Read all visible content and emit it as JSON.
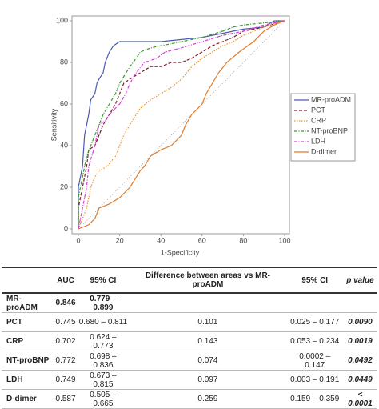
{
  "chart_data": {
    "type": "line",
    "xlabel": "1-Specificity",
    "ylabel": "Sensitivity",
    "xlim": [
      0,
      100
    ],
    "ylim": [
      0,
      100
    ],
    "xticks": [
      0,
      20,
      40,
      60,
      80,
      100
    ],
    "yticks": [
      0,
      20,
      40,
      60,
      80,
      100
    ],
    "reference_line": true,
    "legend": "right",
    "series": [
      {
        "name": "MR-proADM",
        "color": "#4a5bb5",
        "style": "solid",
        "x": [
          0,
          0,
          2,
          3,
          5,
          6,
          8,
          9,
          10,
          12,
          13,
          15,
          17,
          20,
          30,
          40,
          50,
          60,
          70,
          80,
          90,
          95,
          100
        ],
        "values": [
          0,
          20,
          30,
          45,
          55,
          62,
          65,
          70,
          72,
          75,
          80,
          85,
          88,
          90,
          90,
          90,
          91,
          92,
          94,
          96,
          97,
          100,
          100
        ]
      },
      {
        "name": "PCT",
        "color": "#7a1f2b",
        "style": "dashed",
        "x": [
          0,
          0,
          2,
          4,
          5,
          8,
          10,
          12,
          15,
          18,
          20,
          22,
          25,
          30,
          35,
          40,
          45,
          50,
          55,
          60,
          65,
          70,
          75,
          80,
          90,
          100
        ],
        "values": [
          0,
          10,
          20,
          30,
          38,
          40,
          45,
          50,
          55,
          60,
          65,
          70,
          72,
          75,
          78,
          78,
          80,
          80,
          82,
          85,
          88,
          90,
          92,
          95,
          97,
          100
        ]
      },
      {
        "name": "CRP",
        "color": "#e8962e",
        "style": "dotted",
        "x": [
          0,
          2,
          4,
          6,
          8,
          10,
          14,
          18,
          20,
          22,
          25,
          28,
          30,
          35,
          40,
          45,
          50,
          55,
          60,
          65,
          70,
          75,
          80,
          85,
          90,
          100
        ],
        "values": [
          0,
          5,
          10,
          20,
          25,
          28,
          30,
          35,
          40,
          45,
          50,
          55,
          58,
          62,
          65,
          68,
          72,
          78,
          82,
          85,
          88,
          90,
          93,
          95,
          97,
          100
        ]
      },
      {
        "name": "NT-proBNP",
        "color": "#3a9a2a",
        "style": "dashdot",
        "x": [
          0,
          0,
          2,
          4,
          6,
          8,
          10,
          12,
          15,
          18,
          20,
          25,
          28,
          30,
          35,
          40,
          50,
          60,
          70,
          75,
          80,
          90,
          100
        ],
        "values": [
          0,
          15,
          25,
          35,
          40,
          45,
          50,
          55,
          60,
          65,
          70,
          78,
          82,
          85,
          87,
          88,
          90,
          92,
          95,
          97,
          98,
          99,
          100
        ]
      },
      {
        "name": "LDH",
        "color": "#d63fd6",
        "style": "dashdot",
        "x": [
          0,
          2,
          4,
          5,
          8,
          10,
          13,
          15,
          20,
          23,
          25,
          28,
          32,
          38,
          42,
          50,
          60,
          70,
          80,
          90,
          100
        ],
        "values": [
          0,
          10,
          20,
          30,
          40,
          50,
          52,
          55,
          60,
          65,
          70,
          75,
          80,
          82,
          85,
          87,
          90,
          93,
          95,
          98,
          100
        ]
      },
      {
        "name": "D-dimer",
        "color": "#e07b2a",
        "style": "solid",
        "x": [
          0,
          5,
          8,
          10,
          15,
          20,
          25,
          30,
          32,
          35,
          40,
          45,
          50,
          52,
          55,
          60,
          62,
          65,
          68,
          72,
          78,
          85,
          90,
          95,
          100
        ],
        "values": [
          0,
          2,
          5,
          10,
          12,
          15,
          20,
          28,
          30,
          35,
          38,
          40,
          45,
          50,
          55,
          60,
          65,
          70,
          75,
          80,
          85,
          90,
          95,
          98,
          100
        ]
      }
    ]
  },
  "table": {
    "header": [
      "AUC",
      "95% CI",
      "Difference between areas vs MR-proADM",
      "95% CI",
      "p value"
    ],
    "rows": [
      [
        "MR-proADM",
        "0.846",
        "0.779 – 0.899"
      ],
      [
        "PCT",
        "0.745",
        "0.680 – 0.811",
        "0.101",
        "0.025 – 0.177",
        "0.0090"
      ],
      [
        "CRP",
        "0.702",
        "0.624 – 0.773",
        "0.143",
        "0.053 – 0.234",
        "0.0019"
      ],
      [
        "NT-proBNP",
        "0.772",
        "0.698 – 0.836",
        "0.074",
        "0.0002 – 0.147",
        "0.0492"
      ],
      [
        "LDH",
        "0.749",
        "0.673 – 0.815",
        "0.097",
        "0.003 – 0.191",
        "0.0449"
      ],
      [
        "D-dimer",
        "0.587",
        "0.505 – 0.665",
        "0.259",
        "0.159 – 0.359",
        "< 0.0001"
      ]
    ]
  }
}
